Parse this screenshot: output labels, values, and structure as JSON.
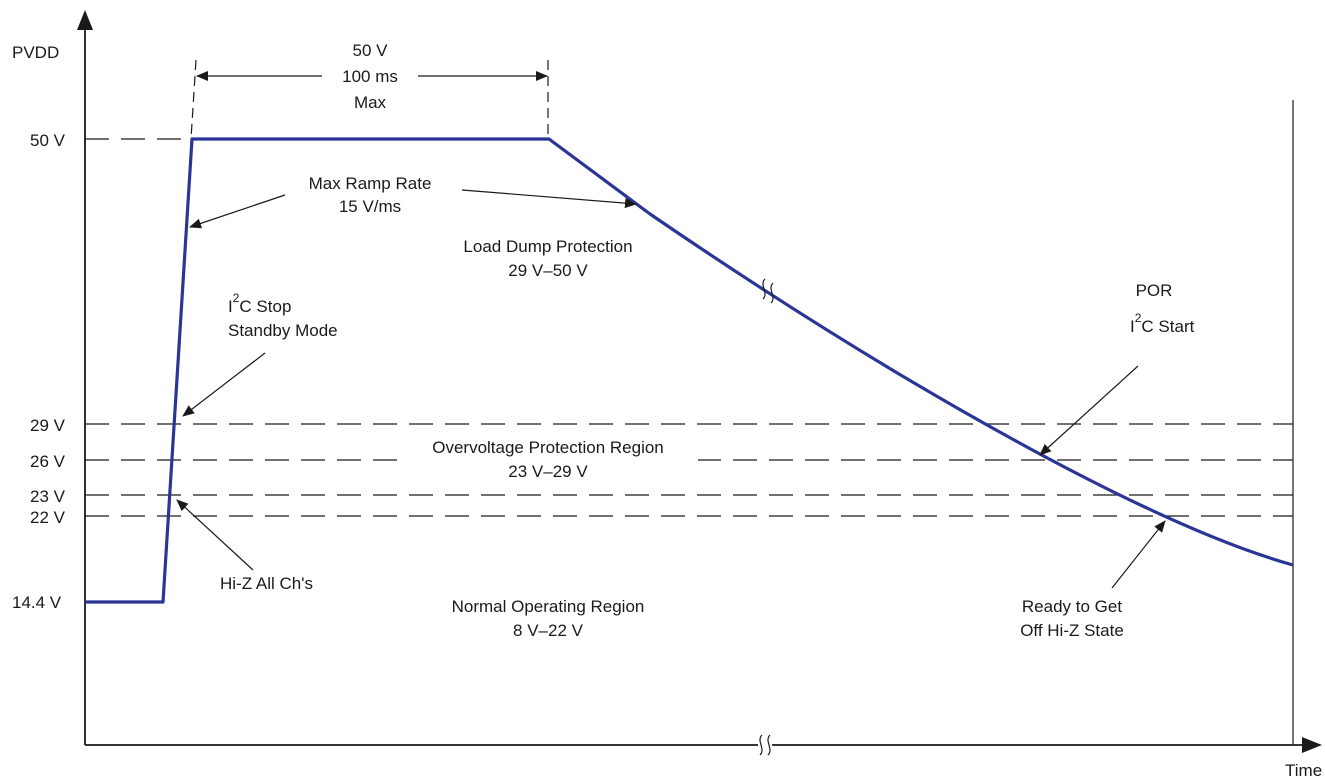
{
  "diagram": {
    "y_axis_label": "PVDD",
    "x_axis_label": "Time",
    "levels": [
      "50 V",
      "29 V",
      "26 V",
      "23 V",
      "22 V",
      "14.4 V"
    ],
    "duration": {
      "line1": "50 V",
      "line2": "100 ms",
      "line3": "Max"
    },
    "ramp_rate": {
      "line1": "Max Ramp Rate",
      "line2": "15 V/ms"
    },
    "load_dump": {
      "line1": "Load Dump Protection",
      "line2": "29 V–50 V"
    },
    "i2c_stop": {
      "line1a": "I",
      "line1sup": "2",
      "line1b": "C Stop",
      "line2": "Standby Mode"
    },
    "por": {
      "line1": "POR",
      "line2a": "I",
      "line2sup": "2",
      "line2b": "C Start"
    },
    "overvoltage": {
      "line1": "Overvoltage Protection Region",
      "line2": "23 V–29 V"
    },
    "hiz": {
      "line1": "Hi-Z All Ch's"
    },
    "normal": {
      "line1": "Normal Operating Region",
      "line2": "8 V–22 V"
    },
    "ready": {
      "line1": "Ready to Get",
      "line2": "Off Hi-Z State"
    },
    "colors": {
      "waveform": "#2b3596",
      "lines": "#1a1a1a"
    }
  }
}
